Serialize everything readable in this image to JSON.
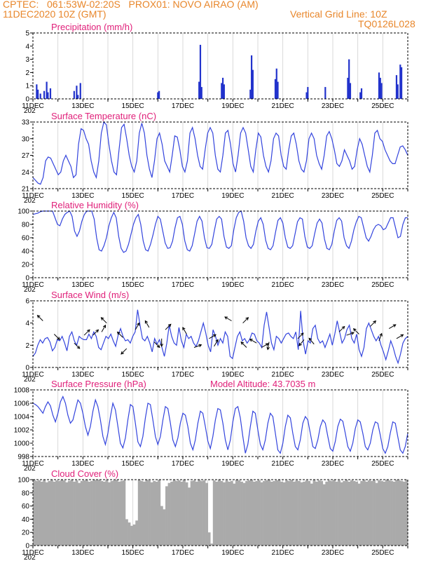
{
  "header": {
    "line1": "CPTEC:   061:53W-02:20S   PROX01: NOVO AIRAO (AM)",
    "date": "11DEC2020 10Z (GMT)",
    "grid": "Vertical Grid Line: 10Z",
    "code": "TQ0126L028"
  },
  "x_axis": {
    "days": 15,
    "labels": [
      "11DEC",
      "13DEC",
      "15DEC",
      "17DEC",
      "19DEC",
      "21DEC",
      "23DEC",
      "25DEC"
    ],
    "label_days": [
      0,
      2,
      4,
      6,
      8,
      10,
      12,
      14
    ],
    "year_stub": "202"
  },
  "panels": {
    "precip": {
      "title": "Precipitation (mm/h)"
    },
    "temp": {
      "title": "Surface Temperature (nC)"
    },
    "rh": {
      "title": "Relative Humidity (%)"
    },
    "wind": {
      "title": "Surface Wind (m/s)"
    },
    "pres": {
      "title": "Surface Pressure (hPa)",
      "note": "Model Altitude: 43.7035 m"
    },
    "cloud": {
      "title": "Cloud Cover (%)"
    }
  },
  "colors": {
    "line": "#3344dd",
    "bar": "#2233cc",
    "cloud": "#aaaaaa",
    "title": "#e0207a",
    "header": "#e8862a"
  },
  "chart_data": [
    {
      "type": "bar",
      "title": "Precipitation (mm/h)",
      "ylim": [
        0,
        5
      ],
      "yticks": [
        0,
        1,
        2,
        3,
        4,
        5
      ],
      "bars": [
        [
          0.15,
          1.1
        ],
        [
          0.2,
          0.7
        ],
        [
          0.3,
          0.4
        ],
        [
          0.45,
          0.6
        ],
        [
          0.55,
          1.3
        ],
        [
          0.6,
          0.5
        ],
        [
          0.7,
          0.8
        ],
        [
          1.65,
          0.6
        ],
        [
          1.75,
          1.0
        ],
        [
          1.8,
          0.3
        ],
        [
          1.9,
          1.2
        ],
        [
          5.0,
          0.5
        ],
        [
          5.05,
          0.6
        ],
        [
          6.65,
          1.3
        ],
        [
          6.7,
          4.1
        ],
        [
          6.75,
          0.9
        ],
        [
          7.55,
          1.2
        ],
        [
          7.6,
          1.6
        ],
        [
          7.65,
          1.1
        ],
        [
          8.7,
          0.7
        ],
        [
          8.75,
          3.3
        ],
        [
          8.8,
          2.2
        ],
        [
          9.7,
          1.5
        ],
        [
          9.75,
          2.3
        ],
        [
          9.8,
          1.3
        ],
        [
          10.95,
          0.5
        ],
        [
          11.0,
          0.9
        ],
        [
          11.7,
          0.9
        ],
        [
          12.6,
          1.6
        ],
        [
          12.65,
          3.0
        ],
        [
          12.7,
          1.2
        ],
        [
          13.1,
          0.5
        ],
        [
          13.15,
          0.8
        ],
        [
          13.85,
          2.0
        ],
        [
          13.9,
          1.6
        ],
        [
          13.95,
          1.2
        ],
        [
          14.55,
          1.8
        ],
        [
          14.6,
          1.1
        ],
        [
          14.7,
          2.6
        ],
        [
          14.75,
          2.4
        ]
      ]
    },
    {
      "type": "line",
      "title": "Surface Temperature (nC)",
      "ylim": [
        21,
        33
      ],
      "yticks": [
        21,
        24,
        27,
        30,
        33
      ],
      "values": [
        23,
        22.5,
        22,
        21.8,
        23,
        26,
        26.7,
        26.5,
        25.5,
        24.5,
        23.5,
        24,
        26,
        27,
        26,
        25,
        23,
        23.5,
        29,
        31.8,
        31.5,
        30,
        29,
        26,
        24,
        23,
        26,
        31,
        33,
        32.5,
        29,
        26,
        24,
        23.5,
        28,
        32,
        32.6,
        30,
        27,
        25,
        24,
        26,
        31,
        32.8,
        31,
        27,
        24.5,
        23,
        26,
        30,
        31,
        29,
        26,
        25,
        24,
        27,
        30.5,
        30.3,
        28,
        25,
        24,
        26,
        31,
        32,
        30,
        27,
        25,
        24.5,
        28,
        31,
        32,
        31,
        27,
        24.5,
        24,
        27,
        31,
        31.5,
        29,
        25.5,
        24,
        27,
        31,
        32,
        31,
        28,
        25,
        24,
        28,
        31,
        30.3,
        27,
        25,
        24,
        26,
        30,
        31,
        30.5,
        27,
        25,
        24.5,
        28,
        30.5,
        31,
        29,
        26,
        24.5,
        24,
        26,
        30,
        31,
        30,
        27,
        25.5,
        24.5,
        27,
        30.5,
        31.3,
        30,
        28,
        25.5,
        25,
        26,
        28,
        27,
        26,
        24.5,
        25,
        28,
        30,
        29,
        27,
        25,
        24,
        27,
        31,
        31.5,
        30,
        29.5,
        28,
        27,
        26,
        25.5,
        25.5,
        27,
        28.5,
        28.7,
        28,
        27
      ]
    },
    {
      "type": "line",
      "title": "Relative Humidity (%)",
      "ylim": [
        0,
        100
      ],
      "yticks": [
        0,
        20,
        40,
        60,
        80,
        100
      ],
      "values": [
        95,
        96,
        97,
        99,
        100,
        100,
        100,
        100,
        100,
        90,
        80,
        78,
        88,
        95,
        98,
        100,
        92,
        70,
        62,
        70,
        85,
        95,
        100,
        100,
        100,
        88,
        60,
        42,
        40,
        48,
        60,
        78,
        90,
        98,
        90,
        62,
        44,
        38,
        40,
        50,
        65,
        80,
        90,
        95,
        80,
        55,
        42,
        40,
        50,
        64,
        80,
        92,
        88,
        70,
        52,
        44,
        45,
        55,
        75,
        90,
        92,
        80,
        55,
        42,
        40,
        48,
        66,
        85,
        92,
        85,
        60,
        45,
        44,
        50,
        70,
        88,
        92,
        88,
        62,
        46,
        44,
        48,
        72,
        90,
        98,
        100,
        85,
        60,
        48,
        44,
        50,
        70,
        85,
        90,
        80,
        56,
        44,
        42,
        48,
        68,
        86,
        90,
        82,
        60,
        46,
        44,
        48,
        66,
        84,
        90,
        88,
        62,
        46,
        44,
        48,
        66,
        82,
        88,
        82,
        58,
        44,
        42,
        50,
        70,
        86,
        90,
        85,
        60,
        48,
        44,
        55,
        72,
        84,
        92,
        90,
        75,
        60,
        55,
        62,
        72,
        78,
        80,
        78,
        72,
        74,
        82,
        90,
        90,
        75,
        60,
        62,
        80,
        90,
        90
      ]
    },
    {
      "type": "line",
      "title": "Surface Wind (m/s)",
      "ylim": [
        0,
        6
      ],
      "yticks": [
        0,
        2,
        4,
        6
      ],
      "values": [
        1,
        1.3,
        2,
        2.5,
        2.2,
        2.6,
        2.7,
        2.3,
        1.5,
        1.8,
        2.5,
        2.4,
        2.8,
        2.2,
        1.5,
        2.8,
        3.2,
        2.4,
        2,
        2.8,
        2.6,
        2.5,
        2.5,
        3.0,
        2.6,
        3.2,
        2.8,
        1.8,
        1.6,
        2.2,
        2.8,
        2.6,
        3.0,
        2.4,
        1.9,
        2.9,
        3.5,
        2.8,
        2.4,
        2.5,
        2.2,
        2.8,
        3.2,
        5.2,
        3.8,
        2.6,
        2.4,
        2.8,
        2.2,
        1.4,
        2.6,
        2.1,
        2.5,
        1.8,
        1.0,
        2.2,
        3.8,
        2.8,
        2.2,
        2.0,
        3.6,
        2.4,
        1.8,
        3.0,
        2.6,
        2.8,
        2.2,
        1.9,
        2.4,
        3.2,
        4.0,
        3.1,
        2.0,
        1.4,
        3.4,
        2.8,
        2.0,
        2.6,
        2.2,
        3.2,
        2.8,
        1.0,
        0.8,
        1.8,
        2.8,
        3.2,
        2.4,
        2.6,
        2.2,
        2.5,
        3.1,
        3.0,
        2.4,
        2.2,
        1.8,
        3.8,
        5.0,
        3.6,
        2.2,
        1.6,
        2.8,
        2.6,
        2.2,
        2.6,
        3.0,
        3.1,
        2.8,
        2.6,
        3.2,
        1.6,
        5.1,
        2.4,
        1.2,
        2.4,
        2.2,
        3.5,
        3.8,
        2.6,
        2.2,
        2.4,
        1.8,
        2.4,
        3.0,
        2.0,
        3.0,
        4.2,
        3.2,
        2.2,
        2.6,
        3.4,
        3.8,
        2.6,
        2.2,
        3.0,
        1.6,
        1.0,
        1.8,
        3.5,
        4.0,
        3.4,
        2.8,
        2.4,
        2.8,
        2.0,
        1.4,
        0.7,
        1.5,
        2.4,
        1.8,
        1.0,
        0.4,
        1.2,
        2.2,
        2.6,
        2.8
      ],
      "arrows": [
        [
          0.4,
          4.2,
          225
        ],
        [
          0.85,
          3.0,
          45
        ],
        [
          1.65,
          2.2,
          45
        ],
        [
          2.05,
          2.9,
          -45
        ],
        [
          2.4,
          2.9,
          -45
        ],
        [
          2.75,
          3.2,
          -60
        ],
        [
          2.95,
          4.0,
          -135
        ],
        [
          3.6,
          2.7,
          -135
        ],
        [
          3.75,
          1.7,
          135
        ],
        [
          4.1,
          3.4,
          -60
        ],
        [
          4.65,
          3.6,
          -120
        ],
        [
          4.85,
          2.3,
          45
        ],
        [
          5.15,
          2.6,
          90
        ],
        [
          5.3,
          3.4,
          -45
        ],
        [
          6.15,
          3.0,
          -120
        ],
        [
          6.45,
          1.8,
          -20
        ],
        [
          7.05,
          2.6,
          -30
        ],
        [
          7.25,
          1.9,
          -60
        ],
        [
          7.95,
          4.2,
          -150
        ],
        [
          8.4,
          4.0,
          -45
        ],
        [
          8.55,
          1.8,
          -135
        ],
        [
          8.95,
          2.2,
          -150
        ],
        [
          9.15,
          1.8,
          -30
        ],
        [
          9.45,
          2.3,
          100
        ],
        [
          10.6,
          2.6,
          -45
        ],
        [
          10.85,
          2.5,
          130
        ],
        [
          11.25,
          2.1,
          -130
        ],
        [
          12.25,
          3.2,
          -45
        ],
        [
          12.55,
          2.9,
          -20
        ],
        [
          13.05,
          3.0,
          -135
        ],
        [
          13.5,
          3.7,
          -45
        ],
        [
          13.85,
          2.4,
          -70
        ],
        [
          14.25,
          3.5,
          -30
        ],
        [
          14.55,
          2.6,
          -30
        ]
      ]
    },
    {
      "type": "line",
      "title": "Surface Pressure (hPa)",
      "note": "Model Altitude: 43.7035 m",
      "ylim": [
        998,
        1008
      ],
      "yticks": [
        998,
        1000,
        1002,
        1004,
        1006,
        1008
      ],
      "values": [
        1006,
        1005.8,
        1005.5,
        1005,
        1004.5,
        1005.5,
        1006.2,
        1005.6,
        1004.2,
        1003.2,
        1004.5,
        1006.2,
        1007,
        1006,
        1004.2,
        1003,
        1003.5,
        1005,
        1006.5,
        1006,
        1004.5,
        1002.5,
        1001.2,
        1002.5,
        1004.8,
        1006.5,
        1005.5,
        1003.5,
        1001,
        999.8,
        1001.5,
        1004,
        1006,
        1005,
        1002.5,
        1000,
        999.3,
        1000.8,
        1003.5,
        1005.8,
        1005.5,
        1003,
        1000.2,
        999.5,
        1001,
        1003.8,
        1006,
        1005.8,
        1003.5,
        1001,
        999.8,
        1001,
        1003.5,
        1005.5,
        1005.2,
        1003,
        1000.5,
        999.5,
        1000.8,
        1003,
        1004.5,
        1004.2,
        1002.5,
        1000,
        999,
        1000.5,
        1003,
        1004.8,
        1004.5,
        1002.5,
        1000.3,
        999.2,
        1001,
        1003.5,
        1005.2,
        1005,
        1003,
        1000.5,
        999,
        1000.5,
        1003.2,
        1005.2,
        1005.5,
        1003.8,
        1001,
        998.5,
        999.8,
        1002.5,
        1004.8,
        1004.5,
        1002,
        999.8,
        999,
        1000.5,
        1003,
        1004.5,
        1004,
        1001.5,
        999,
        998.5,
        1000,
        1002.5,
        1004.2,
        1003.8,
        1001.5,
        999.5,
        999,
        1000.5,
        1003,
        1004,
        1003.5,
        1001.5,
        999.5,
        999.2,
        1000.5,
        1002.5,
        1003.5,
        1003,
        1001,
        999.2,
        998.8,
        1000.3,
        1002.5,
        1003.6,
        1003.3,
        1001.5,
        999.5,
        998.8,
        1000,
        1002.2,
        1003.5,
        1003.2,
        1001.5,
        999.5,
        999,
        1000,
        1002,
        1003.2,
        1003,
        1001.2,
        999.2,
        998.5,
        999.5,
        1001.5,
        1003.2,
        1003,
        1001,
        999,
        998.5,
        999.5,
        1001.5
      ]
    },
    {
      "type": "area",
      "title": "Cloud Cover (%)",
      "ylim": [
        0,
        100
      ],
      "yticks": [
        0,
        20,
        40,
        60,
        80,
        100
      ],
      "values": [
        100,
        98,
        99,
        97,
        100,
        96,
        98,
        100,
        97,
        99,
        98,
        100,
        99,
        96,
        98,
        100,
        97,
        99,
        95,
        98,
        99,
        100,
        97,
        98,
        100,
        99,
        100,
        98,
        97,
        100,
        96,
        98,
        99,
        100,
        97,
        98,
        99,
        40,
        35,
        30,
        32,
        38,
        100,
        98,
        97,
        100,
        99,
        96,
        98,
        97,
        100,
        60,
        55,
        90,
        95,
        97,
        100,
        98,
        99,
        97,
        100,
        96,
        88,
        98,
        99,
        97,
        100,
        98,
        99,
        95,
        20,
        3,
        99,
        97,
        100,
        98,
        96,
        99,
        97,
        98,
        94,
        100,
        99,
        97,
        95,
        98,
        99,
        100,
        97,
        98,
        99,
        96,
        98,
        99,
        100,
        97,
        98,
        99,
        100,
        97,
        96,
        99,
        98,
        100,
        97,
        99,
        98,
        96,
        97,
        99,
        98,
        94,
        100,
        97,
        99,
        98,
        93,
        97,
        99,
        98,
        100,
        97,
        99,
        96,
        98,
        100,
        97,
        99,
        98,
        97,
        94,
        98,
        100,
        97,
        99,
        98,
        100,
        95,
        99,
        98,
        97,
        100,
        99,
        98,
        97,
        100,
        99,
        98,
        97,
        100
      ]
    }
  ]
}
